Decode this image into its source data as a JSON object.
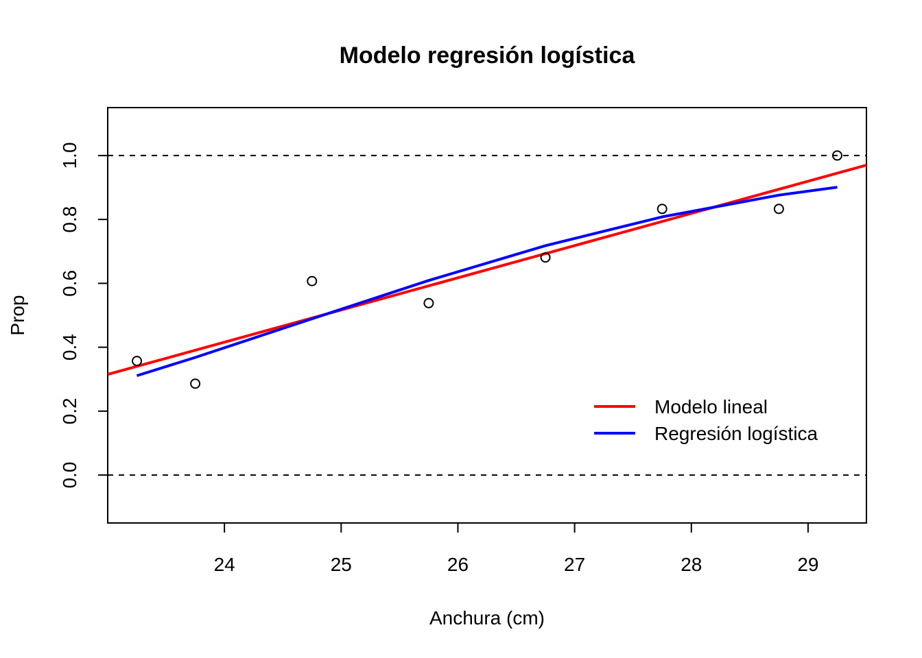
{
  "chart_data": {
    "type": "scatter",
    "title": "Modelo regresión logística",
    "xlabel": "Anchura (cm)",
    "ylabel": "Prop",
    "xlim": [
      23.0,
      29.5
    ],
    "ylim": [
      -0.15,
      1.15
    ],
    "x_ticks": [
      24,
      25,
      26,
      27,
      28,
      29
    ],
    "y_ticks": [
      0.0,
      0.2,
      0.4,
      0.6,
      0.8,
      1.0
    ],
    "x_tick_labels": [
      "24",
      "25",
      "26",
      "27",
      "28",
      "29"
    ],
    "y_tick_labels": [
      "0.0",
      "0.2",
      "0.4",
      "0.6",
      "0.8",
      "1.0"
    ],
    "reference_lines": [
      0.0,
      1.0
    ],
    "points": {
      "x": [
        23.25,
        23.75,
        24.75,
        25.75,
        26.75,
        27.75,
        28.75,
        29.25
      ],
      "y": [
        0.357,
        0.286,
        0.607,
        0.538,
        0.681,
        0.833,
        0.833,
        1.0
      ]
    },
    "series": [
      {
        "name": "Modelo lineal",
        "color": "#ff0000",
        "x": [
          23.0,
          29.5
        ],
        "y": [
          0.315,
          0.97
        ]
      },
      {
        "name": "Regresión logística",
        "color": "#0000ff",
        "x": [
          23.25,
          23.75,
          24.75,
          25.75,
          26.75,
          27.75,
          28.75,
          29.25
        ],
        "y": [
          0.311,
          0.368,
          0.489,
          0.609,
          0.718,
          0.808,
          0.876,
          0.901
        ]
      }
    ],
    "legend_position": "bottom-right",
    "grid": false
  }
}
